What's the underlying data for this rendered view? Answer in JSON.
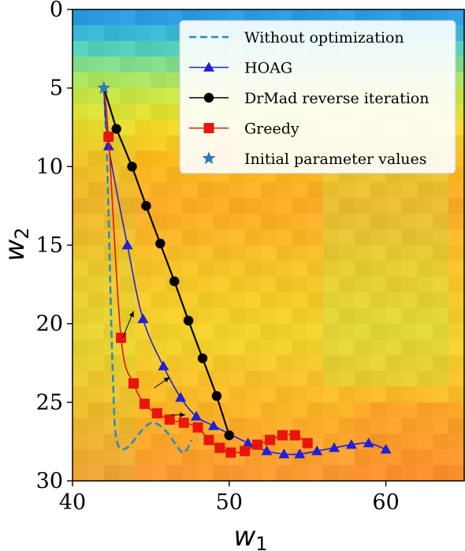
{
  "chart_data": {
    "type": "line",
    "title": "",
    "xlabel": "w",
    "xlabel_sub": "1",
    "ylabel": "w",
    "ylabel_sub": "2",
    "xlim": [
      40,
      65
    ],
    "ylim": [
      30,
      0
    ],
    "y_inverted": true,
    "xticks": [
      "40",
      "50",
      "60"
    ],
    "yticks": [
      "0",
      "5",
      "10",
      "15",
      "20",
      "25",
      "30"
    ],
    "background": "heatmap (blue at top, yellow / orange elsewhere)",
    "legend_position": "top-right",
    "series": [
      {
        "name": "Without optimization",
        "style": "dashed",
        "color": "#2b8cbe",
        "x": [
          42.0,
          42.1,
          42.2,
          42.3,
          42.4,
          42.5,
          42.6,
          42.7,
          42.9,
          43.2,
          43.6,
          44.1,
          44.6,
          45.1,
          45.6,
          46.1,
          46.6,
          47.0,
          47.3,
          47.6
        ],
        "y": [
          5.0,
          7.0,
          9.5,
          13.0,
          17.0,
          21.0,
          24.0,
          26.5,
          27.7,
          28.0,
          27.8,
          27.2,
          26.6,
          26.3,
          26.5,
          27.0,
          27.7,
          28.2,
          28.0,
          27.4
        ]
      },
      {
        "name": "HOAG",
        "style": "solid-triangle",
        "color": "#1f1fdc",
        "x": [
          42.0,
          42.3,
          43.5,
          44.5,
          45.8,
          46.9,
          47.9,
          49.0,
          51.2,
          52.4,
          53.5,
          54.5,
          55.6,
          56.7,
          57.8,
          58.9,
          60.0
        ],
        "y": [
          5.0,
          8.7,
          15.0,
          19.7,
          22.7,
          24.7,
          25.9,
          26.5,
          27.6,
          28.1,
          28.3,
          28.3,
          28.1,
          27.9,
          27.7,
          27.6,
          28.0
        ]
      },
      {
        "name": "DrMad reverse iteration",
        "style": "solid-circle",
        "color": "#000000",
        "x": [
          42.0,
          42.8,
          43.8,
          44.7,
          45.6,
          46.5,
          47.4,
          48.3,
          49.2,
          50.0
        ],
        "y": [
          5.0,
          7.6,
          10.0,
          12.5,
          14.9,
          17.3,
          19.8,
          22.2,
          24.6,
          27.1
        ]
      },
      {
        "name": "Greedy",
        "style": "solid-square",
        "color": "#e8140e",
        "x": [
          42.0,
          42.3,
          43.1,
          43.9,
          44.6,
          45.4,
          46.2,
          47.1,
          48.0,
          48.7,
          49.4,
          50.1,
          51.0,
          51.8,
          52.6,
          53.4,
          54.2,
          55.0
        ],
        "y": [
          5.0,
          8.1,
          20.9,
          23.8,
          25.1,
          25.7,
          26.1,
          26.3,
          26.6,
          27.4,
          27.9,
          28.2,
          28.1,
          27.7,
          27.4,
          27.1,
          27.1,
          27.6
        ]
      },
      {
        "name": "Initial parameter values",
        "style": "star",
        "color": "#2b7bba",
        "x": [
          42.0
        ],
        "y": [
          5.0
        ]
      }
    ],
    "annotations": [
      {
        "type": "arrow",
        "from": [
          43.2,
          20.9
        ],
        "to": [
          43.9,
          19.2
        ]
      },
      {
        "type": "arrow",
        "from": [
          45.2,
          24.1
        ],
        "to": [
          46.2,
          23.4
        ]
      },
      {
        "type": "arrow",
        "from": [
          46.3,
          25.8
        ],
        "to": [
          47.2,
          25.8
        ]
      }
    ]
  }
}
